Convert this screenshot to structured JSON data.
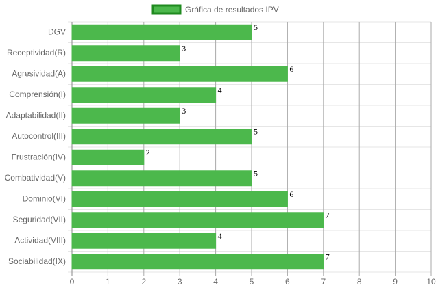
{
  "chart_data": {
    "type": "bar",
    "orientation": "horizontal",
    "categories": [
      "DGV",
      "Receptividad(R)",
      "Agresividad(A)",
      "Comprensión(I)",
      "Adaptabilidad(II)",
      "Autocontrol(III)",
      "Frustración(IV)",
      "Combatividad(V)",
      "Dominio(VI)",
      "Seguridad(VII)",
      "Actividad(VIII)",
      "Sociabilidad(IX)"
    ],
    "series": [
      {
        "name": "Gráfica de resultados IPV",
        "color": "#4cb84c",
        "border": "#1f8a1f",
        "values": [
          5,
          3,
          6,
          4,
          3,
          5,
          2,
          5,
          6,
          7,
          4,
          7
        ]
      }
    ],
    "xlim": [
      0,
      10
    ],
    "xticks": [
      0,
      1,
      2,
      3,
      4,
      5,
      6,
      7,
      8,
      9,
      10
    ],
    "grid": true,
    "legend": "top"
  }
}
